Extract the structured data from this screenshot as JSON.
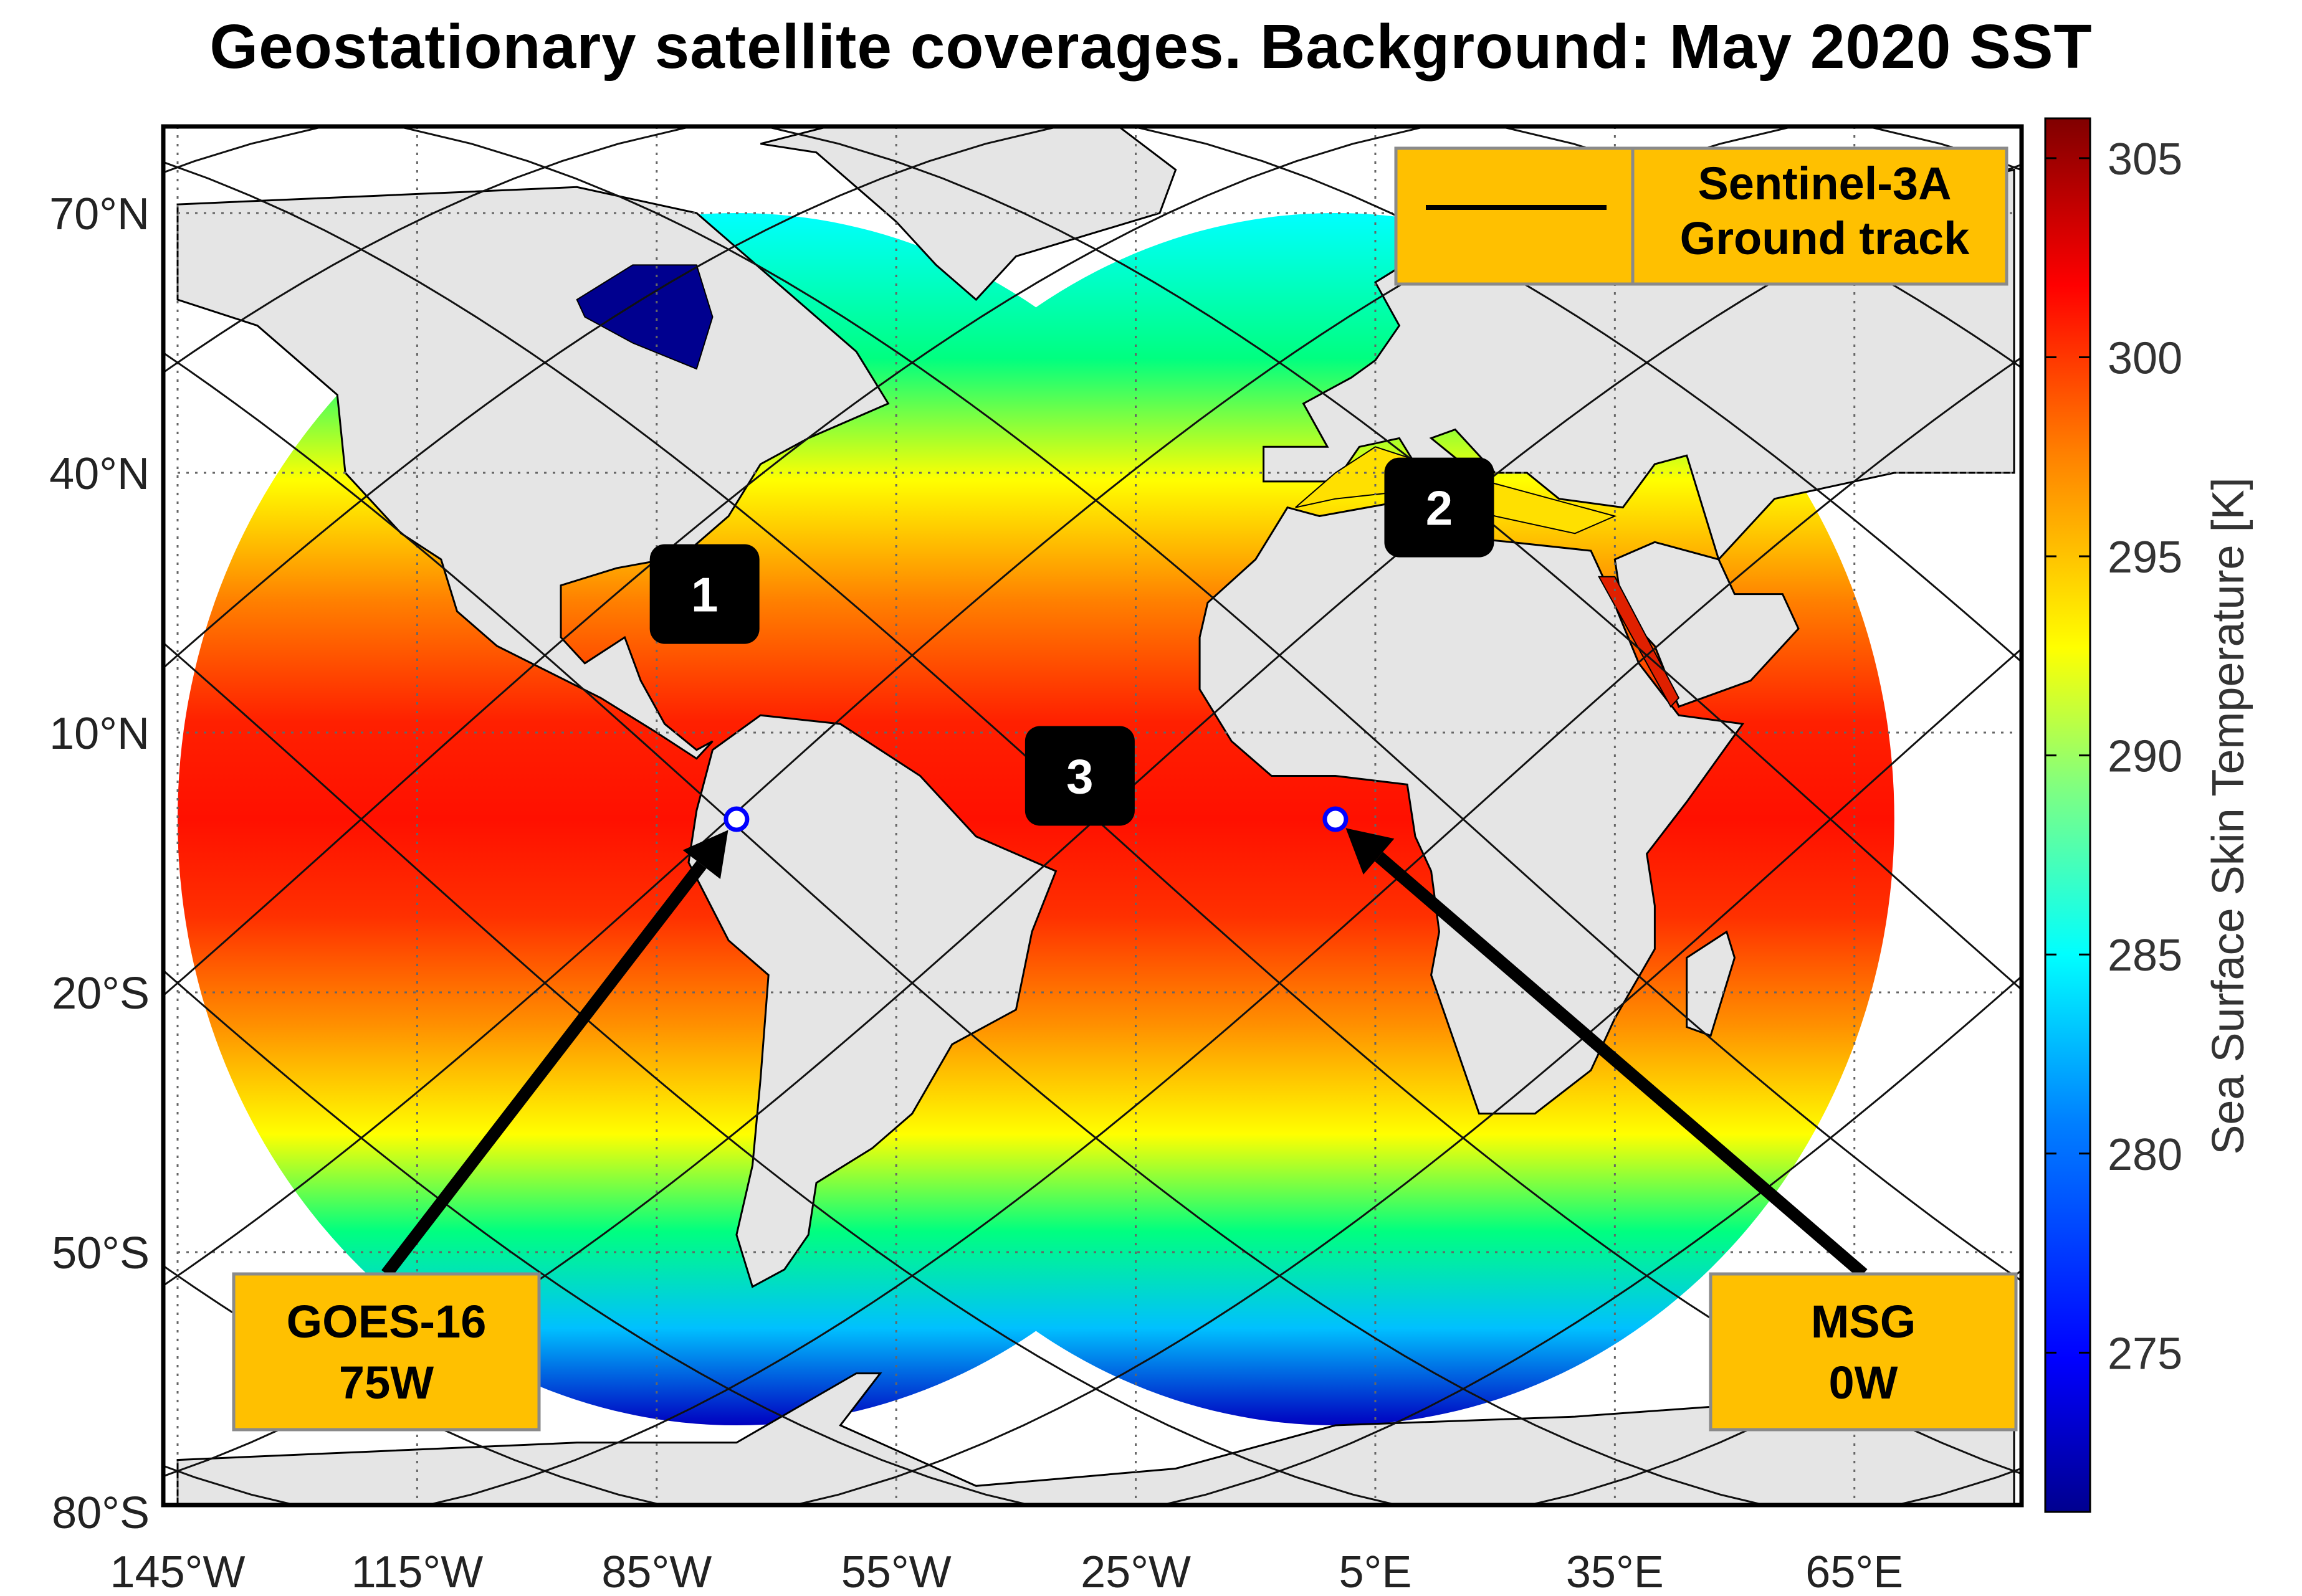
{
  "title": "Geostationary satellite coverages. Background: May 2020 SST",
  "map": {
    "projection": "equirectangular",
    "lon_range": [
      -145,
      85
    ],
    "lat_range": [
      -80,
      80
    ],
    "lon_ticks": [
      {
        "value": -145,
        "label": "145°W"
      },
      {
        "value": -115,
        "label": "115°W"
      },
      {
        "value": -85,
        "label": "85°W"
      },
      {
        "value": -55,
        "label": "55°W"
      },
      {
        "value": -25,
        "label": "25°W"
      },
      {
        "value": 5,
        "label": "5°E"
      },
      {
        "value": 35,
        "label": "35°E"
      },
      {
        "value": 65,
        "label": "65°E"
      }
    ],
    "lat_ticks": [
      {
        "value": 70,
        "label": "70°N"
      },
      {
        "value": 40,
        "label": "40°N"
      },
      {
        "value": 10,
        "label": "10°N"
      },
      {
        "value": -20,
        "label": "20°S"
      },
      {
        "value": -50,
        "label": "50°S"
      },
      {
        "value": -80,
        "label": "80°S"
      }
    ],
    "grid": "dotted"
  },
  "colorbar": {
    "label": "Sea Surface Skin Temperature [K]",
    "ticks": [
      "305",
      "300",
      "295",
      "290",
      "285",
      "280",
      "275"
    ],
    "range": [
      271,
      306
    ],
    "colormap": [
      "#00008f",
      "#0000ff",
      "#0080ff",
      "#00ffff",
      "#80ff80",
      "#ffff00",
      "#ff8000",
      "#ff0000",
      "#800000"
    ]
  },
  "satellites": [
    {
      "name_line1": "GOES-16",
      "name_line2": "75W",
      "lon": -75,
      "lat": 0,
      "coverage_radius_deg": 70
    },
    {
      "name_line1": "MSG",
      "name_line2": "0W",
      "lon": 0,
      "lat": 0,
      "coverage_radius_deg": 70
    }
  ],
  "legend": {
    "line1": "Sentinel-3A",
    "line2": "Ground track"
  },
  "markers": [
    {
      "label": "1",
      "lon": -79,
      "lat": 26
    },
    {
      "label": "2",
      "lon": 13,
      "lat": 36
    },
    {
      "label": "3",
      "lon": -32,
      "lat": 5
    }
  ],
  "colors": {
    "land": "#e5e5e5",
    "box": "#ffc000",
    "marker_bg": "#000000",
    "satellite_point": "#0000ff"
  }
}
